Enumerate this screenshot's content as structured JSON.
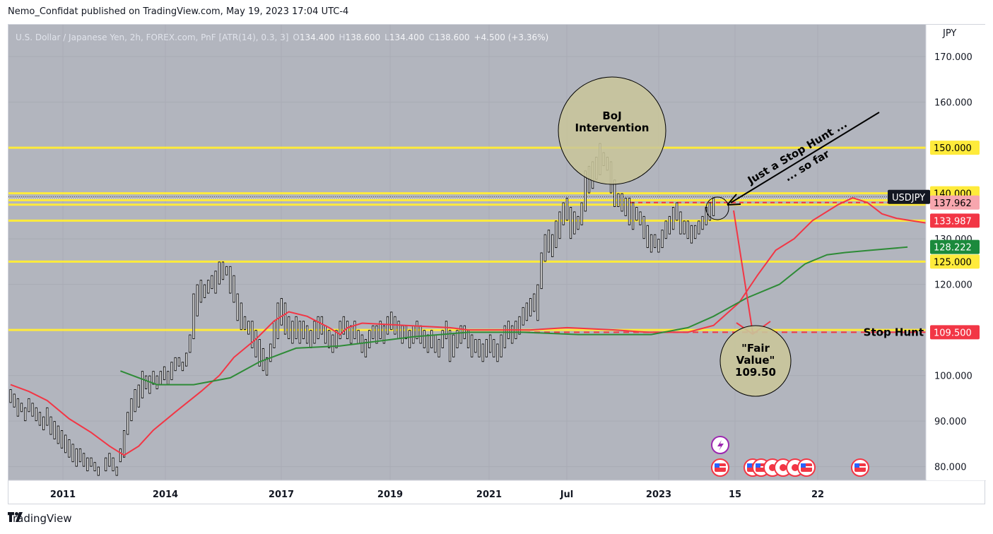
{
  "header": {
    "published": "Nemo_Confidat published on TradingView.com, May 19, 2023 17:04 UTC-4"
  },
  "footer": {
    "brand": "TradingView",
    "logo_icon": "tradingview-logo-icon"
  },
  "legend": {
    "symbol": "U.S. Dollar / Japanese Yen, 2h, FOREX.com, PnF [ATR(14), 0.3, 3]",
    "o_label": "O",
    "o_value": "134.400",
    "h_label": "H",
    "h_value": "138.600",
    "l_label": "L",
    "l_value": "134.400",
    "c_label": "C",
    "c_value": "138.600",
    "change": "+4.500 (+3.36%)"
  },
  "colors": {
    "background": "#b2b5be",
    "yellow": "#ffeb3b",
    "red": "#f23645",
    "green": "#2e8b37",
    "circle_fill": "#c9c59a"
  },
  "chart_data": {
    "type": "line",
    "currency": "JPY",
    "ylim": [
      77,
      177
    ],
    "yticks": [
      80,
      90,
      100,
      110,
      120,
      130,
      140,
      150,
      160,
      170
    ],
    "ytick_labels": [
      "80.000",
      "90.000",
      "100.000",
      "",
      "120.000",
      "130.000",
      "",
      "",
      "160.000",
      "170.000"
    ],
    "x_ticks": [
      "2011",
      "2014",
      "2017",
      "2019",
      "2021",
      "Jul",
      "2023",
      "15",
      "22"
    ],
    "horizontal_levels": [
      150,
      140,
      138.5,
      137.5,
      134,
      125,
      110
    ],
    "price_labels": [
      {
        "text": "150.000",
        "value": 150,
        "style": "yellow"
      },
      {
        "text": "140.000",
        "value": 140,
        "style": "yellow"
      },
      {
        "text": "137.962",
        "value": 137.962,
        "style": "pink"
      },
      {
        "text": "133.987",
        "value": 133.987,
        "style": "red"
      },
      {
        "text": "128.222",
        "value": 128.222,
        "style": "green"
      },
      {
        "text": "125.000",
        "value": 125,
        "style": "yellow"
      },
      {
        "text": "109.500",
        "value": 109.5,
        "style": "red"
      }
    ],
    "symbol_tag": "USDJPY",
    "series": [
      {
        "name": "Fast MA",
        "color": "#f23645",
        "values": [
          [
            0,
            98
          ],
          [
            5,
            96.5
          ],
          [
            10,
            94.5
          ],
          [
            16,
            90.5
          ],
          [
            22,
            87.5
          ],
          [
            27,
            84.5
          ],
          [
            31,
            82.5
          ],
          [
            35,
            84.5
          ],
          [
            39,
            88
          ],
          [
            45,
            92
          ],
          [
            52,
            96.5
          ],
          [
            57,
            100
          ],
          [
            61,
            104
          ],
          [
            67,
            108
          ],
          [
            72,
            112
          ],
          [
            76,
            114
          ],
          [
            81,
            113
          ],
          [
            87,
            110.5
          ],
          [
            90,
            109
          ],
          [
            92,
            110.5
          ],
          [
            96,
            111.5
          ],
          [
            108,
            111
          ],
          [
            120,
            110.5
          ],
          [
            125,
            110
          ],
          [
            132,
            110
          ],
          [
            142,
            110
          ],
          [
            152,
            110.5
          ],
          [
            165,
            110
          ],
          [
            174,
            109.5
          ],
          [
            185,
            109.5
          ],
          [
            192,
            111
          ],
          [
            199,
            116
          ],
          [
            204,
            122
          ],
          [
            209,
            127.5
          ],
          [
            214,
            130
          ],
          [
            219,
            134
          ],
          [
            226,
            137.5
          ],
          [
            230,
            139
          ],
          [
            234,
            138
          ],
          [
            238,
            135.5
          ],
          [
            242,
            134.5
          ],
          [
            246,
            134
          ],
          [
            250,
            133.5
          ]
        ]
      },
      {
        "name": "Slow MA",
        "color": "#2e8b37",
        "values": [
          [
            30,
            101
          ],
          [
            40,
            98
          ],
          [
            50,
            98
          ],
          [
            60,
            99.5
          ],
          [
            68,
            103
          ],
          [
            78,
            106
          ],
          [
            90,
            106.5
          ],
          [
            100,
            107.5
          ],
          [
            110,
            108.5
          ],
          [
            125,
            109.5
          ],
          [
            140,
            109.5
          ],
          [
            155,
            109
          ],
          [
            175,
            109
          ],
          [
            185,
            110.5
          ],
          [
            192,
            113
          ],
          [
            201,
            117
          ],
          [
            210,
            120
          ],
          [
            217,
            124.5
          ],
          [
            223,
            126.5
          ],
          [
            228,
            127
          ],
          [
            235,
            127.5
          ],
          [
            245,
            128.2
          ]
        ]
      }
    ],
    "pnf_segments": [
      [
        0,
        94,
        97
      ],
      [
        1,
        93,
        96
      ],
      [
        2,
        91,
        95
      ],
      [
        3,
        92,
        94
      ],
      [
        4,
        90,
        93
      ],
      [
        5,
        92,
        95
      ],
      [
        6,
        91,
        94
      ],
      [
        7,
        90,
        93
      ],
      [
        8,
        89,
        92
      ],
      [
        9,
        88,
        91
      ],
      [
        10,
        89,
        93
      ],
      [
        11,
        87,
        91
      ],
      [
        12,
        86,
        90
      ],
      [
        13,
        85,
        89
      ],
      [
        14,
        84,
        88
      ],
      [
        15,
        83,
        87
      ],
      [
        16,
        82,
        86
      ],
      [
        17,
        81,
        85
      ],
      [
        18,
        80,
        84
      ],
      [
        19,
        81,
        84
      ],
      [
        20,
        80,
        83
      ],
      [
        21,
        79,
        82
      ],
      [
        22,
        80,
        82
      ],
      [
        23,
        79,
        81
      ],
      [
        24,
        78,
        80
      ],
      [
        26,
        79,
        82
      ],
      [
        27,
        80,
        83
      ],
      [
        28,
        79,
        82
      ],
      [
        29,
        78,
        80
      ],
      [
        30,
        81,
        84
      ],
      [
        31,
        82,
        88
      ],
      [
        32,
        87,
        92
      ],
      [
        33,
        90,
        95
      ],
      [
        34,
        92,
        97
      ],
      [
        35,
        93,
        98
      ],
      [
        36,
        95,
        101
      ],
      [
        37,
        97,
        100
      ],
      [
        38,
        96,
        100
      ],
      [
        39,
        98,
        101
      ],
      [
        40,
        97,
        100
      ],
      [
        41,
        98,
        101
      ],
      [
        42,
        99,
        102
      ],
      [
        43,
        98,
        101
      ],
      [
        44,
        99,
        103
      ],
      [
        45,
        101,
        104
      ],
      [
        46,
        102,
        104
      ],
      [
        47,
        101,
        103
      ],
      [
        48,
        102,
        105
      ],
      [
        49,
        105,
        109
      ],
      [
        50,
        108,
        118
      ],
      [
        51,
        113,
        120
      ],
      [
        52,
        116,
        121
      ],
      [
        53,
        117,
        120
      ],
      [
        54,
        118,
        121
      ],
      [
        55,
        119,
        122
      ],
      [
        56,
        118,
        123
      ],
      [
        57,
        120,
        125
      ],
      [
        58,
        121,
        125
      ],
      [
        59,
        122,
        124
      ],
      [
        60,
        118,
        124
      ],
      [
        61,
        116,
        122
      ],
      [
        62,
        112,
        118
      ],
      [
        63,
        110,
        116
      ],
      [
        64,
        110,
        113
      ],
      [
        65,
        109,
        112
      ],
      [
        66,
        106,
        112
      ],
      [
        67,
        104,
        110
      ],
      [
        68,
        102,
        108
      ],
      [
        69,
        101,
        106
      ],
      [
        70,
        100,
        104
      ],
      [
        71,
        103,
        107
      ],
      [
        72,
        106,
        112
      ],
      [
        73,
        108,
        116
      ],
      [
        74,
        111,
        117
      ],
      [
        75,
        109,
        116
      ],
      [
        76,
        108,
        113
      ],
      [
        77,
        107,
        112
      ],
      [
        78,
        108,
        113
      ],
      [
        79,
        107,
        112
      ],
      [
        80,
        108,
        112
      ],
      [
        81,
        107,
        111
      ],
      [
        82,
        106,
        110
      ],
      [
        83,
        107,
        112
      ],
      [
        84,
        108,
        113
      ],
      [
        85,
        109,
        113
      ],
      [
        86,
        107,
        111
      ],
      [
        87,
        106,
        110
      ],
      [
        88,
        105,
        109
      ],
      [
        89,
        106,
        110
      ],
      [
        90,
        108,
        112
      ],
      [
        91,
        109,
        113
      ],
      [
        92,
        108,
        112
      ],
      [
        93,
        107,
        111
      ],
      [
        94,
        108,
        112
      ],
      [
        95,
        107,
        110
      ],
      [
        96,
        105,
        109
      ],
      [
        97,
        104,
        108
      ],
      [
        98,
        106,
        110
      ],
      [
        99,
        108,
        111
      ],
      [
        100,
        107,
        111
      ],
      [
        101,
        108,
        112
      ],
      [
        102,
        107,
        111
      ],
      [
        103,
        109,
        113
      ],
      [
        104,
        110,
        114
      ],
      [
        105,
        109,
        113
      ],
      [
        106,
        108,
        112
      ],
      [
        107,
        107,
        111
      ],
      [
        108,
        108,
        111
      ],
      [
        109,
        106,
        110
      ],
      [
        110,
        107,
        111
      ],
      [
        111,
        108,
        112
      ],
      [
        112,
        107,
        111
      ],
      [
        113,
        106,
        110
      ],
      [
        114,
        105,
        109
      ],
      [
        115,
        106,
        110
      ],
      [
        116,
        105,
        109
      ],
      [
        117,
        104,
        108
      ],
      [
        118,
        106,
        110
      ],
      [
        119,
        108,
        112
      ],
      [
        120,
        103,
        110
      ],
      [
        121,
        104,
        109
      ],
      [
        122,
        106,
        110
      ],
      [
        123,
        107,
        111
      ],
      [
        124,
        108,
        111
      ],
      [
        125,
        106,
        110
      ],
      [
        126,
        104,
        109
      ],
      [
        127,
        105,
        108
      ],
      [
        128,
        104,
        108
      ],
      [
        129,
        103,
        107
      ],
      [
        130,
        104,
        108
      ],
      [
        131,
        105,
        109
      ],
      [
        132,
        104,
        108
      ],
      [
        133,
        103,
        107
      ],
      [
        134,
        104,
        109
      ],
      [
        135,
        106,
        111
      ],
      [
        136,
        108,
        112
      ],
      [
        137,
        107,
        111
      ],
      [
        138,
        108,
        112
      ],
      [
        139,
        109,
        113
      ],
      [
        140,
        111,
        115
      ],
      [
        141,
        112,
        116
      ],
      [
        142,
        113,
        117
      ],
      [
        143,
        114,
        118
      ],
      [
        144,
        112,
        120
      ],
      [
        145,
        119,
        127
      ],
      [
        146,
        125,
        131
      ],
      [
        147,
        127,
        132
      ],
      [
        148,
        126,
        131
      ],
      [
        149,
        128,
        134
      ],
      [
        150,
        130,
        136
      ],
      [
        151,
        133,
        138
      ],
      [
        152,
        134,
        139
      ],
      [
        153,
        130,
        137
      ],
      [
        154,
        131,
        136
      ],
      [
        155,
        132,
        135
      ],
      [
        156,
        133,
        138
      ],
      [
        157,
        136,
        145
      ],
      [
        158,
        140,
        146
      ],
      [
        159,
        141,
        147
      ],
      [
        160,
        143,
        148
      ],
      [
        161,
        144,
        151
      ],
      [
        162,
        146,
        149
      ],
      [
        163,
        145,
        148
      ],
      [
        164,
        140,
        147
      ],
      [
        165,
        137,
        143
      ],
      [
        166,
        137,
        140
      ],
      [
        167,
        136,
        140
      ],
      [
        168,
        135,
        139
      ],
      [
        169,
        133,
        139
      ],
      [
        170,
        132,
        138
      ],
      [
        171,
        134,
        137
      ],
      [
        172,
        133,
        136
      ],
      [
        173,
        130,
        135
      ],
      [
        174,
        128,
        133
      ],
      [
        175,
        127,
        131
      ],
      [
        176,
        128,
        131
      ],
      [
        177,
        127,
        130
      ],
      [
        178,
        128,
        132
      ],
      [
        179,
        130,
        134
      ],
      [
        180,
        131,
        135
      ],
      [
        181,
        132,
        137
      ],
      [
        182,
        134,
        138
      ],
      [
        183,
        131,
        136
      ],
      [
        184,
        131,
        134
      ],
      [
        185,
        130,
        134
      ],
      [
        186,
        129,
        133
      ],
      [
        187,
        130,
        133
      ],
      [
        188,
        131,
        134
      ],
      [
        189,
        132,
        135
      ],
      [
        190,
        133,
        137
      ],
      [
        191,
        134,
        138
      ],
      [
        192,
        135,
        139
      ]
    ],
    "stop_hunt_level": 109.5,
    "target_value": 109.5
  },
  "annotations": {
    "boj_line1": "BoJ",
    "boj_line2": "Intervention",
    "stop_hunt_arrow_line1": "Just a Stop Hunt ...",
    "stop_hunt_arrow_line2": "... so far",
    "stop_hunt_label": "Stop Hunt",
    "fair_value_line1": "\"Fair",
    "fair_value_line2": "Value\"",
    "fair_value_line3": "109.50"
  },
  "events": {
    "flash_icon": "lightning-event-icon",
    "flag_icon": "us-flag-event-icon",
    "japan_icon": "japan-flag-event-icon"
  }
}
